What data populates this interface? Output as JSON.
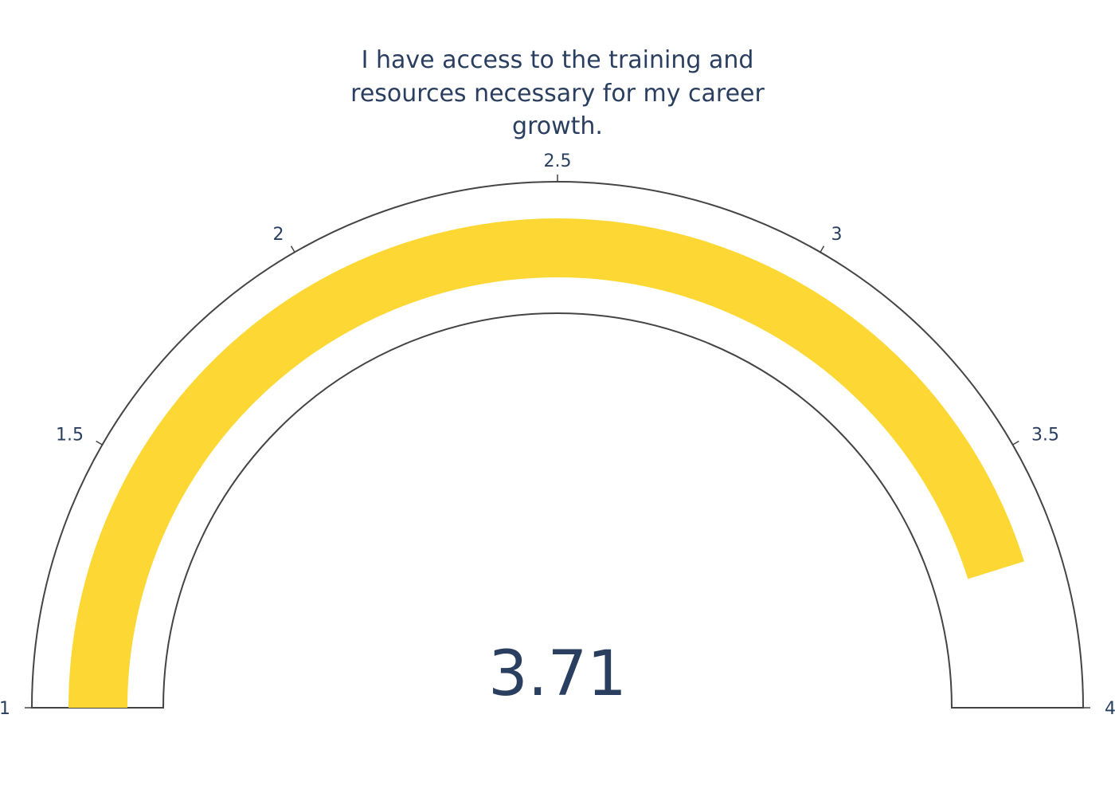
{
  "chart_data": {
    "type": "gauge",
    "title_lines": [
      "I have access to the training and",
      "resources necessary for my career",
      "growth."
    ],
    "value": 3.71,
    "value_label": "3.71",
    "range": [
      1,
      4
    ],
    "ticks": [
      {
        "value": 1,
        "label": "1"
      },
      {
        "value": 1.5,
        "label": "1.5"
      },
      {
        "value": 2,
        "label": "2"
      },
      {
        "value": 2.5,
        "label": "2.5"
      },
      {
        "value": 3,
        "label": "3"
      },
      {
        "value": 3.5,
        "label": "3.5"
      },
      {
        "value": 4,
        "label": "4"
      }
    ],
    "colors": {
      "bar": "#fdd835",
      "outline": "#444444",
      "text": "#2a3f5f"
    }
  }
}
